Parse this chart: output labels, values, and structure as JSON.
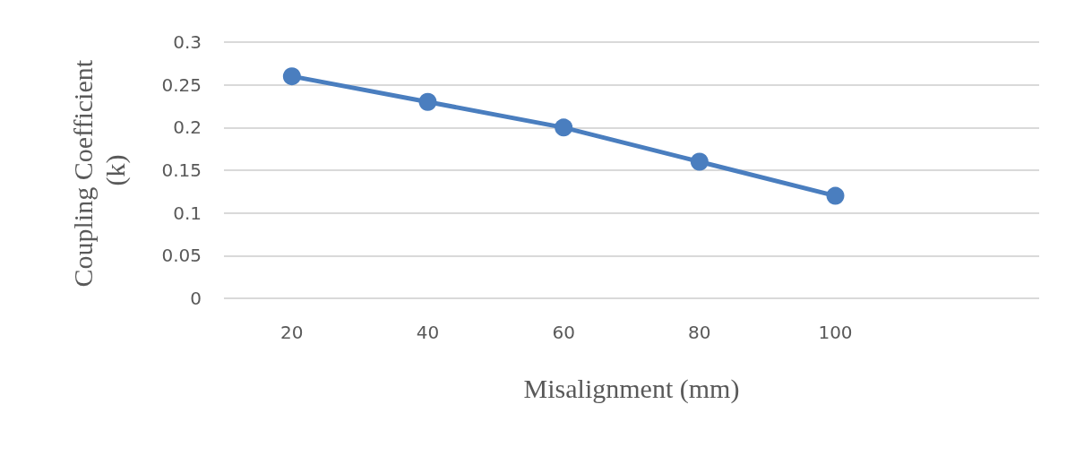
{
  "chart_data": {
    "type": "line",
    "xlabel": "Misalignment (mm)",
    "ylabel": "Coupling Coefficient (k)",
    "categories": [
      "20",
      "40",
      "60",
      "80",
      "100",
      null
    ],
    "series": [
      {
        "color": "#4a7ebf",
        "values": [
          0.26,
          0.23,
          0.2,
          0.16,
          0.12,
          null
        ]
      }
    ],
    "ylim": [
      0,
      0.3
    ],
    "yticks": [
      0,
      0.05,
      0.1,
      0.15,
      0.2,
      0.25,
      0.3
    ],
    "grid": "y",
    "marker": "circle",
    "line_style": "solid"
  }
}
